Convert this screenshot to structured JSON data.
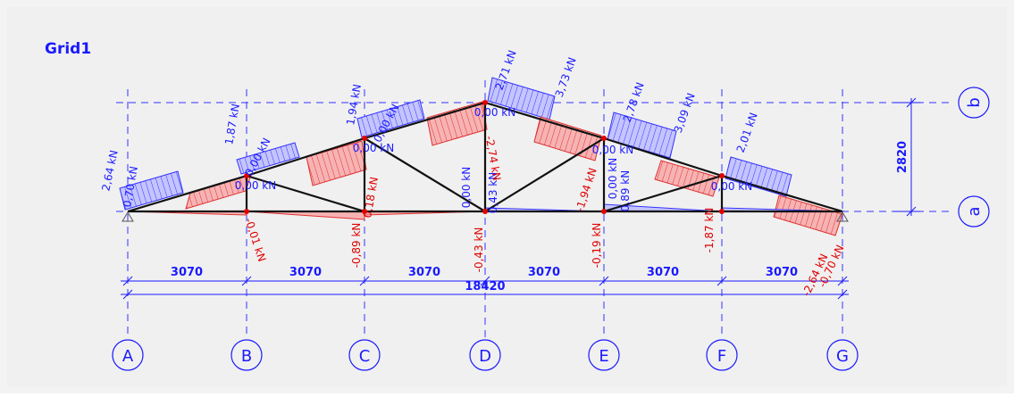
{
  "title": "Grid1",
  "grid_axes": [
    "A",
    "B",
    "C",
    "D",
    "E",
    "F",
    "G"
  ],
  "levels": [
    "a",
    "b"
  ],
  "dimensions": {
    "spans": [
      "3070",
      "3070",
      "3070",
      "3070",
      "3070",
      "3070"
    ],
    "total": "18420",
    "height": "2820"
  },
  "forces": [
    "2,64 kN",
    "0,70 kN",
    "1,87 kN",
    "0,00 kN",
    "0,00 kN",
    "1,94 kN",
    "0,00 kN",
    "0,00 kN",
    "0,18 kN",
    "2,71 kN",
    "3,73 kN",
    "0,00 kN",
    "0,00 kN",
    "0,43 kN",
    "-2,74 kN",
    "2,78 kN",
    "3,09 kN",
    "0,00 kN",
    "0,00 kN",
    "0,89 kN",
    "-1,94 kN",
    "2,01 kN",
    "0,00 kN",
    "-0,01 kN",
    "-0,89 kN",
    "-0,43 kN",
    "-0,19 kN",
    "-1,87 kN",
    "-2,64 kN",
    "-0,70 kN"
  ]
}
